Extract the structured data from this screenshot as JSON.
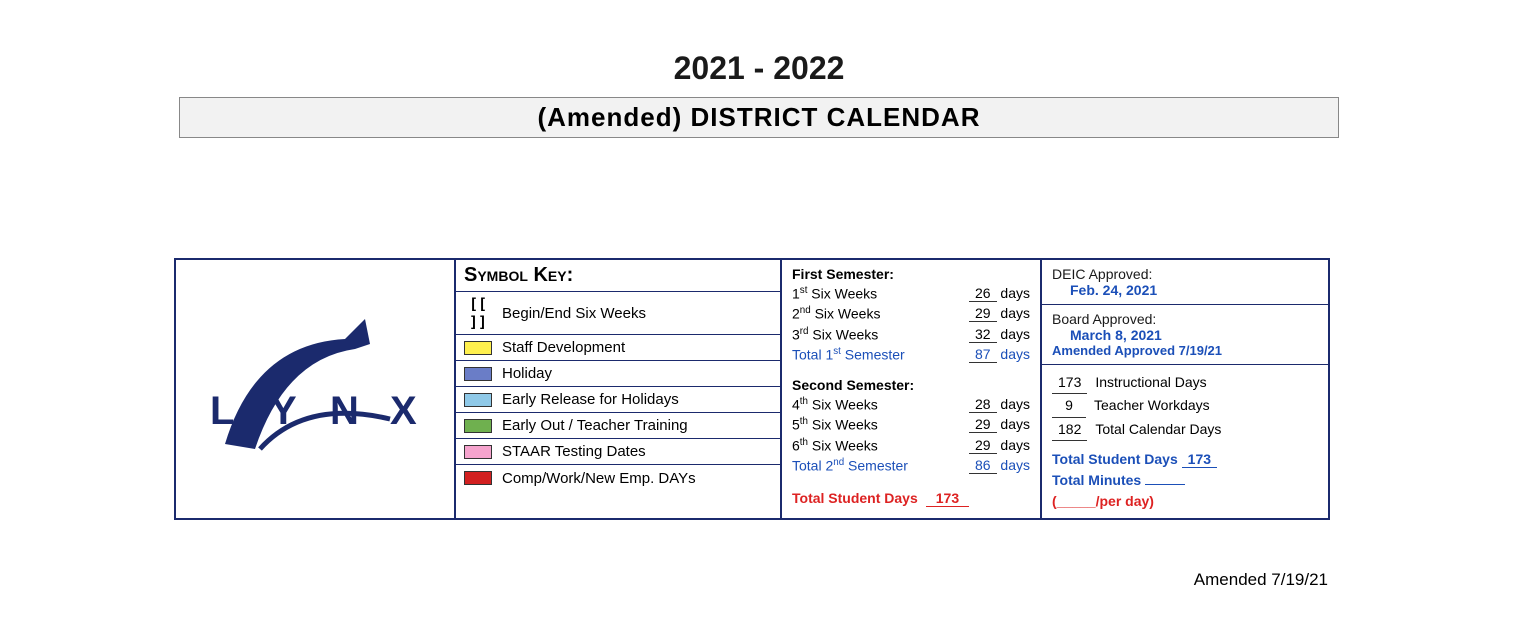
{
  "header": {
    "year": "2021 - 2022",
    "title": "(Amended) DISTRICT CALENDAR"
  },
  "logo": {
    "text": "LYNX",
    "color": "#1b2a6d"
  },
  "symbolKey": {
    "title": "Symbol Key:",
    "items": [
      {
        "symbol": "[[ ]]",
        "color": null,
        "label": "Begin/End Six Weeks"
      },
      {
        "symbol": null,
        "color": "#fff04d",
        "label": "Staff Development"
      },
      {
        "symbol": null,
        "color": "#6a7dc7",
        "label": "Holiday"
      },
      {
        "symbol": null,
        "color": "#8fc9e8",
        "label": "Early Release for Holidays"
      },
      {
        "symbol": null,
        "color": "#6fb04f",
        "label": "Early Out / Teacher Training"
      },
      {
        "symbol": null,
        "color": "#f5a3cd",
        "label": "STAAR Testing Dates"
      },
      {
        "symbol": null,
        "color": "#d22020",
        "label": "Comp/Work/New Emp. DAYs"
      }
    ]
  },
  "semesters": {
    "first": {
      "title": "First Semester:",
      "weeks": [
        {
          "ord": "1",
          "sup": "st",
          "days": "26"
        },
        {
          "ord": "2",
          "sup": "nd",
          "days": "29"
        },
        {
          "ord": "3",
          "sup": "rd",
          "days": "32"
        }
      ],
      "totalLabelOrd": "1",
      "totalLabelSup": "st",
      "totalDays": "87"
    },
    "second": {
      "title": "Second Semester:",
      "weeks": [
        {
          "ord": "4",
          "sup": "th",
          "days": "28"
        },
        {
          "ord": "5",
          "sup": "th",
          "days": "29"
        },
        {
          "ord": "6",
          "sup": "th",
          "days": "29"
        }
      ],
      "totalLabelOrd": "2",
      "totalLabelSup": "nd",
      "totalDays": "86"
    },
    "totalStudent": {
      "label": "Total Student Days",
      "value": "173"
    }
  },
  "approvals": {
    "deic": {
      "label": "DEIC Approved:",
      "date": "Feb. 24, 2021"
    },
    "board": {
      "label": "Board Approved:",
      "date": "March 8, 2021",
      "amended": "Amended Approved 7/19/21"
    },
    "days": {
      "instructional": {
        "num": "173",
        "label": "Instructional Days"
      },
      "teacher": {
        "num": "9",
        "label": "Teacher Workdays"
      },
      "total": {
        "num": "182",
        "label": "Total Calendar Days"
      }
    },
    "totals": {
      "studentLabel": "Total Student Days",
      "studentNum": "173",
      "minutesLabel": "Total Minutes",
      "perDay": "(_____/per day)"
    }
  },
  "footer": {
    "amended": "Amended 7/19/21"
  }
}
